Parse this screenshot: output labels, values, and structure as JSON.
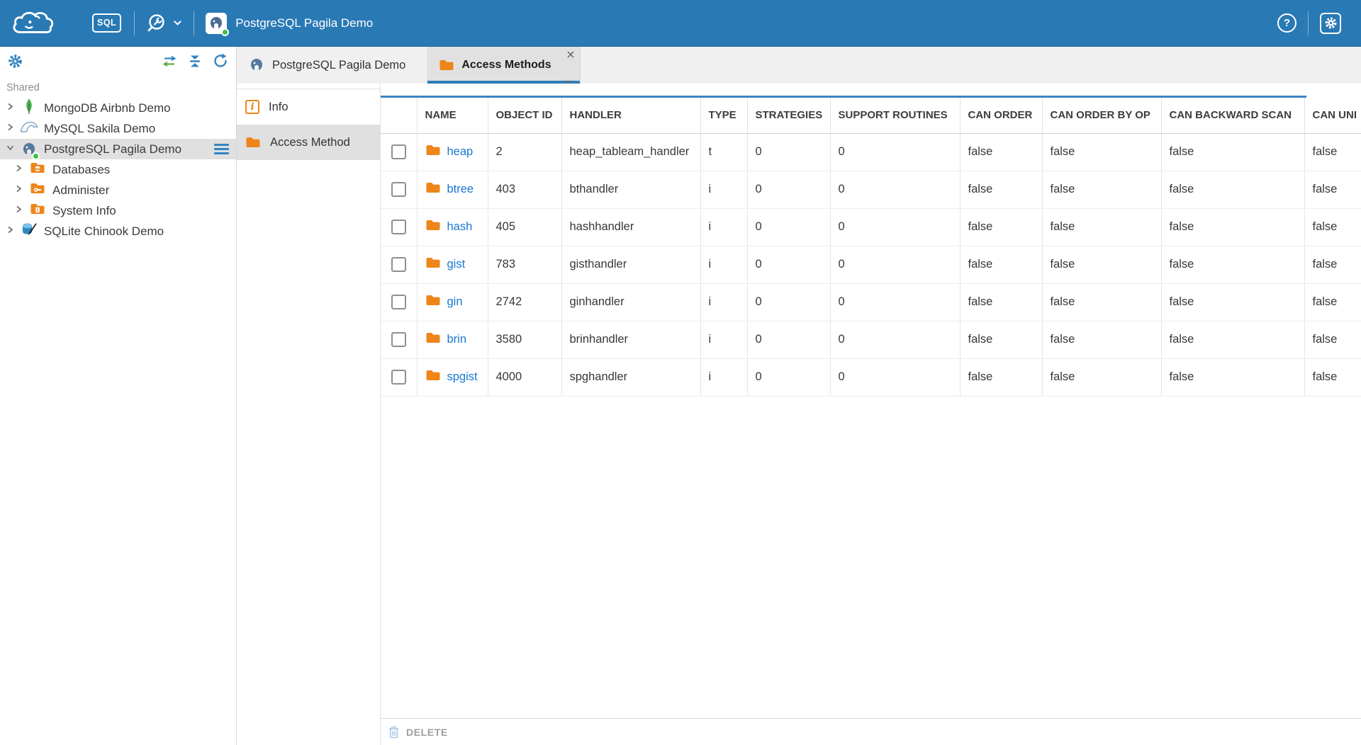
{
  "topbar": {
    "sql_editor_label": "SQL",
    "connection_label": "PostgreSQL Pagila Demo",
    "help_glyph": "?"
  },
  "sidebar": {
    "section_label": "Shared",
    "tree": [
      {
        "id": "mongodb-airbnb-demo",
        "label": "MongoDB Airbnb Demo",
        "icon": "mongodb",
        "level": 0,
        "expanded": false,
        "selected": false
      },
      {
        "id": "mysql-sakila-demo",
        "label": "MySQL Sakila Demo",
        "icon": "mysql",
        "level": 0,
        "expanded": false,
        "selected": false
      },
      {
        "id": "postgresql-pagila-demo",
        "label": "PostgreSQL Pagila Demo",
        "icon": "postgresql",
        "level": 0,
        "expanded": true,
        "selected": true,
        "menu": true
      },
      {
        "id": "databases",
        "label": "Databases",
        "icon": "folder-database",
        "level": 1,
        "expanded": false,
        "selected": false
      },
      {
        "id": "administer",
        "label": "Administer",
        "icon": "folder-admin",
        "level": 1,
        "expanded": false,
        "selected": false
      },
      {
        "id": "system-info",
        "label": "System Info",
        "icon": "folder-info",
        "level": 1,
        "expanded": false,
        "selected": false
      },
      {
        "id": "sqlite-chinook-demo",
        "label": "SQLite Chinook Demo",
        "icon": "sqlite",
        "level": 0,
        "expanded": false,
        "selected": false
      }
    ]
  },
  "tabs": [
    {
      "id": "postgresql-pagila-demo",
      "label": "PostgreSQL Pagila Demo",
      "icon": "postgresql",
      "active": false
    },
    {
      "id": "access-methods",
      "label": "Access Methods",
      "icon": "folder",
      "active": true,
      "overflow_glyph": "..."
    }
  ],
  "object_panel": {
    "items": [
      {
        "id": "info",
        "label": "Info",
        "icon": "info",
        "icon_glyph": "i",
        "selected": false
      },
      {
        "id": "access-method",
        "label": "Access Method",
        "icon": "folder",
        "selected": true
      }
    ]
  },
  "grid": {
    "columns": [
      {
        "key": "select",
        "label": ""
      },
      {
        "key": "name",
        "label": "NAME"
      },
      {
        "key": "object_id",
        "label": "OBJECT ID"
      },
      {
        "key": "handler",
        "label": "HANDLER"
      },
      {
        "key": "type",
        "label": "TYPE"
      },
      {
        "key": "strategies",
        "label": "STRATEGIES"
      },
      {
        "key": "support_routines",
        "label": "SUPPORT ROUTINES"
      },
      {
        "key": "can_order",
        "label": "CAN ORDER"
      },
      {
        "key": "can_order_by_op",
        "label": "CAN ORDER BY OP"
      },
      {
        "key": "can_backward_scan",
        "label": "CAN BACKWARD SCAN"
      },
      {
        "key": "can_unique",
        "label": "CAN UNI"
      }
    ],
    "rows": [
      {
        "name": "heap",
        "object_id": "2",
        "handler": "heap_tableam_handler",
        "type": "t",
        "strategies": "0",
        "support_routines": "0",
        "can_order": "false",
        "can_order_by_op": "false",
        "can_backward_scan": "false",
        "can_unique": "false"
      },
      {
        "name": "btree",
        "object_id": "403",
        "handler": "bthandler",
        "type": "i",
        "strategies": "0",
        "support_routines": "0",
        "can_order": "false",
        "can_order_by_op": "false",
        "can_backward_scan": "false",
        "can_unique": "false"
      },
      {
        "name": "hash",
        "object_id": "405",
        "handler": "hashhandler",
        "type": "i",
        "strategies": "0",
        "support_routines": "0",
        "can_order": "false",
        "can_order_by_op": "false",
        "can_backward_scan": "false",
        "can_unique": "false"
      },
      {
        "name": "gist",
        "object_id": "783",
        "handler": "gisthandler",
        "type": "i",
        "strategies": "0",
        "support_routines": "0",
        "can_order": "false",
        "can_order_by_op": "false",
        "can_backward_scan": "false",
        "can_unique": "false"
      },
      {
        "name": "gin",
        "object_id": "2742",
        "handler": "ginhandler",
        "type": "i",
        "strategies": "0",
        "support_routines": "0",
        "can_order": "false",
        "can_order_by_op": "false",
        "can_backward_scan": "false",
        "can_unique": "false"
      },
      {
        "name": "brin",
        "object_id": "3580",
        "handler": "brinhandler",
        "type": "i",
        "strategies": "0",
        "support_routines": "0",
        "can_order": "false",
        "can_order_by_op": "false",
        "can_backward_scan": "false",
        "can_unique": "false"
      },
      {
        "name": "spgist",
        "object_id": "4000",
        "handler": "spghandler",
        "type": "i",
        "strategies": "0",
        "support_routines": "0",
        "can_order": "false",
        "can_order_by_op": "false",
        "can_backward_scan": "false",
        "can_unique": "false"
      }
    ]
  },
  "footer": {
    "delete_label": "DELETE"
  },
  "colors": {
    "topbar_blue": "#2979b5",
    "accent_blue": "#3385c4",
    "active_tab_underline": "#2e7cb9",
    "grid_top_border": "#3b84c4",
    "link_blue": "#1976d2",
    "folder_orange": "#ee8519",
    "status_green": "#3ec14a",
    "selected_gray": "#e0e0e0"
  }
}
